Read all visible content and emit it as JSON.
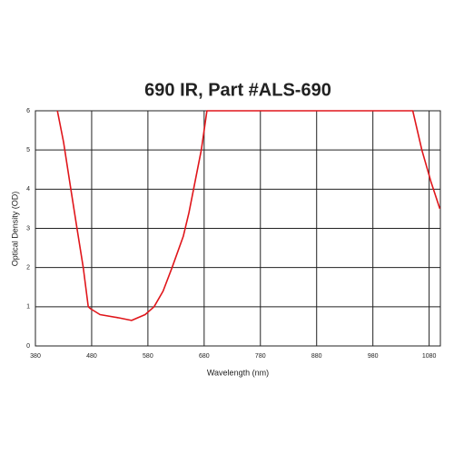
{
  "chart_data": {
    "type": "line",
    "title": "690 IR, Part #ALS-690",
    "x_label": "Wavelength (nm)",
    "y_label": "Optical Density (OD)",
    "xlim": [
      380,
      1100
    ],
    "ylim": [
      0,
      6
    ],
    "xticks": [
      380,
      480,
      580,
      680,
      780,
      880,
      980,
      1080
    ],
    "yticks": [
      0,
      1,
      2,
      3,
      4,
      5,
      6
    ],
    "grid": true,
    "series": [
      {
        "color": "#e0161b",
        "x": [
          419,
          430,
          443,
          454,
          465,
          474,
          478,
          495,
          527,
          551,
          575,
          591,
          607,
          623,
          643,
          653,
          664,
          675,
          685,
          1051,
          1067,
          1083,
          1099
        ],
        "values": [
          6,
          5.2,
          4,
          3,
          2,
          1,
          0.95,
          0.8,
          0.72,
          0.65,
          0.8,
          1.0,
          1.4,
          2,
          2.8,
          3.4,
          4.2,
          5,
          6,
          6,
          5,
          4.2,
          3.5
        ]
      }
    ]
  }
}
